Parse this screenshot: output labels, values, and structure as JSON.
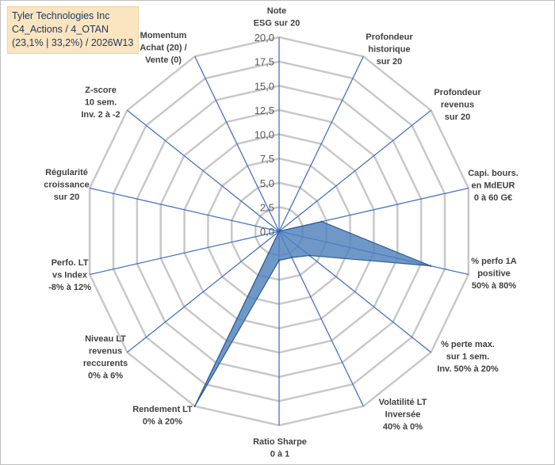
{
  "title_lines": [
    "Tyler Technologies Inc",
    "C4_Actions / 4_OTAN",
    "(23,1% | 33,2%) / 2026W13"
  ],
  "chart_data": {
    "type": "radar",
    "title": "Tyler Technologies Inc",
    "r_range": [
      0,
      20
    ],
    "tick_values": [
      0,
      2.5,
      5,
      7.5,
      10,
      12.5,
      15,
      17.5,
      20
    ],
    "tick_labels": [
      "0,0",
      "2,5",
      "5,0",
      "7,5",
      "10,0",
      "12,5",
      "15,0",
      "17,5",
      "20,0"
    ],
    "axes": [
      {
        "lines": [
          "Note",
          "ESG sur 20"
        ]
      },
      {
        "lines": [
          "Profondeur",
          "historique",
          "sur 20"
        ]
      },
      {
        "lines": [
          "Profondeur",
          "revenus",
          "sur 20"
        ]
      },
      {
        "lines": [
          "Capi. bours.",
          "en MdEUR",
          "0 à 60 G€"
        ]
      },
      {
        "lines": [
          "% perfo 1A",
          "positive",
          "50% à 80%"
        ]
      },
      {
        "lines": [
          "% perte max.",
          "sur 1 sem.",
          "Inv. 50% à 20%"
        ]
      },
      {
        "lines": [
          "Volatilité LT",
          "Inversée",
          "40% à 0%"
        ]
      },
      {
        "lines": [
          "Ratio Sharpe",
          "0 à 1"
        ]
      },
      {
        "lines": [
          "Rendement LT",
          "0% à 20%"
        ]
      },
      {
        "lines": [
          "Niveau LT",
          "revenus",
          "reccurents",
          "0% à 6%"
        ]
      },
      {
        "lines": [
          "Perfo. LT",
          "vs Index",
          "-8% à 12%"
        ]
      },
      {
        "lines": [
          "Régularité",
          "croissance",
          "sur 20"
        ]
      },
      {
        "lines": [
          "Z-score",
          "10 sem.",
          "Inv. 2 à -2"
        ]
      },
      {
        "lines": [
          "Momentum",
          "Achat (20) /",
          "Vente (0)"
        ]
      }
    ],
    "series": [
      {
        "name": "Tyler Technologies Inc",
        "values": [
          0,
          0,
          0,
          4.5,
          16,
          4,
          3,
          3,
          20,
          0,
          0,
          0,
          0,
          0
        ]
      }
    ],
    "colors": {
      "fill": "#4f81bd",
      "stroke": "#2f5b8f",
      "grid": "#c8c8c8",
      "spoke": "#4472c4"
    }
  }
}
